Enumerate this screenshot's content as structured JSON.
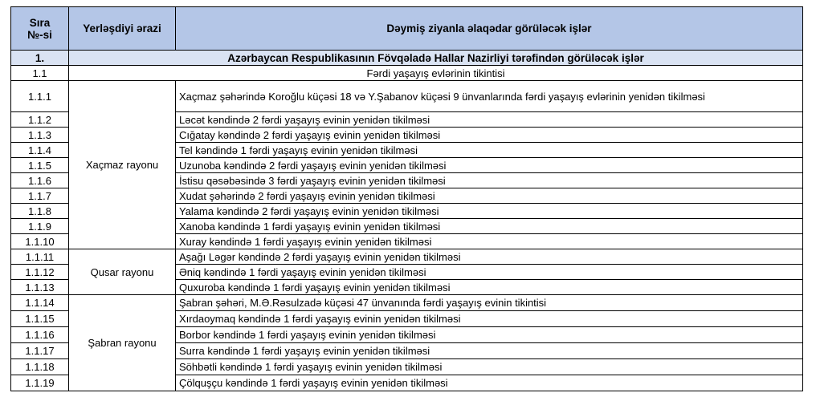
{
  "header": {
    "col_number": "Sıra №-si",
    "col_area": "Yerləşdiyi ərazi",
    "col_works": "Dəymiş ziyanla əlaqədar görüləcək işlər"
  },
  "section": {
    "number": "1.",
    "title": "Azərbaycan Respublikasının Fövqəladə Hallar Nazirliyi  tərəfindən görüləcək işlər"
  },
  "subsection": {
    "number": "1.1",
    "title": "Fərdi yaşayış evlərinin tikintisi"
  },
  "groups": [
    {
      "area": "Xaçmaz rayonu",
      "rows": [
        {
          "number": "1.1.1",
          "work": "Xaçmaz şəhərində Koroğlu küçəsi 18 və Y.Şabanov küçəsi 9 ünvanlarında fərdi yaşayış evlərinin yenidən tikilməsi"
        },
        {
          "number": "1.1.2",
          "work": "Ləcət kəndində 2 fərdi yaşayış evinin yenidən tikilməsi"
        },
        {
          "number": "1.1.3",
          "work": "Cığatay kəndində 2 fərdi yaşayış evinin yenidən tikilməsi"
        },
        {
          "number": "1.1.4",
          "work": "Tel kəndində 1 fərdi yaşayış evinin yenidən tikilməsi"
        },
        {
          "number": "1.1.5",
          "work": "Uzunoba kəndində 2 fərdi yaşayış evinin yenidən tikilməsi"
        },
        {
          "number": "1.1.6",
          "work": "İstisu qəsəbəsində 3 fərdi yaşayış evinin yenidən tikilməsi"
        },
        {
          "number": "1.1.7",
          "work": "Xudat şəhərində 2 fərdi yaşayış evinin yenidən tikilməsi"
        },
        {
          "number": "1.1.8",
          "work": "Yalama kəndində 2 fərdi yaşayış evinin yenidən tikilməsi"
        },
        {
          "number": "1.1.9",
          "work": "Xanoba kəndində 1 fərdi yaşayış evinin yenidən tikilməsi"
        },
        {
          "number": "1.1.10",
          "work": "Xuray kəndində 1 fərdi yaşayış evinin yenidən tikilməsi"
        }
      ]
    },
    {
      "area": "Qusar rayonu",
      "rows": [
        {
          "number": "1.1.11",
          "work": "Aşağı Ləgər kəndində 2 fərdi yaşayış evinin yenidən tikilməsi"
        },
        {
          "number": "1.1.12",
          "work": "Əniq kəndində 1 fərdi yaşayış evinin yenidən tikilməsi"
        },
        {
          "number": "1.1.13",
          "work": "Quxuroba kəndində 1 fərdi yaşayış evinin yenidən tikilməsi"
        }
      ]
    },
    {
      "area": "Şabran rayonu",
      "rows": [
        {
          "number": "1.1.14",
          "work": "Şabran şəhəri, M.Ə.Rəsulzadə küçəsi 47  ünvanında fərdi yaşayış evinin tikintisi"
        },
        {
          "number": "1.1.15",
          "work": "Xırdaoymaq kəndində 1 fərdi yaşayış evinin yenidən tikilməsi"
        },
        {
          "number": "1.1.16",
          "work": "Borbor kəndində 1 fərdi yaşayış evinin yenidən tikilməsi"
        },
        {
          "number": "1.1.17",
          "work": "Surra kəndində 1 fərdi yaşayış evinin yenidən tikilməsi"
        },
        {
          "number": "1.1.18",
          "work": "Söhbətli kəndində 1 fərdi yaşayış evinin yenidən tikilməsi"
        },
        {
          "number": "1.1.19",
          "work": "Çölquşçu kəndində 1 fərdi yaşayış evinin yenidən tikilməsi"
        }
      ]
    }
  ],
  "colors": {
    "header_bg": "#b4c6e7",
    "section_bg": "#dae3f3"
  }
}
